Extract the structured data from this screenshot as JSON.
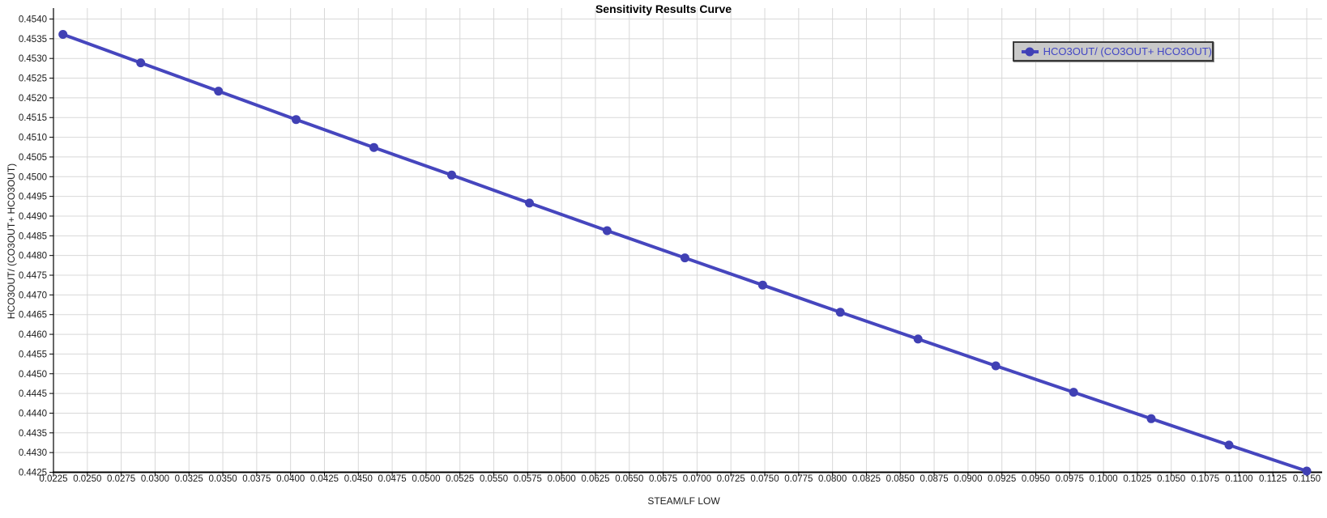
{
  "window": {
    "title": "Sensitivity Results Curve"
  },
  "chart_data": {
    "type": "line",
    "title": "Sensitivity Results Curve",
    "xlabel": "STEAM/LF LOW",
    "ylabel": "HCO3OUT/ (CO3OUT+ HCO3OUT)",
    "legend_position": "top-right",
    "grid": true,
    "marker": "circle",
    "series": [
      {
        "name": "HCO3OUT/ (CO3OUT+ HCO3OUT)",
        "x": [
          0.0232,
          0.02894,
          0.03468,
          0.04041,
          0.04615,
          0.05189,
          0.05763,
          0.06336,
          0.0691,
          0.07484,
          0.08057,
          0.08631,
          0.09205,
          0.09779,
          0.10352,
          0.10926,
          0.115
        ],
        "y": [
          0.45361,
          0.45289,
          0.45217,
          0.45145,
          0.45074,
          0.45004,
          0.44933,
          0.44863,
          0.44794,
          0.44725,
          0.44656,
          0.44588,
          0.4452,
          0.44453,
          0.44386,
          0.44319,
          0.44253
        ]
      }
    ],
    "xlim": [
      0.0225,
      0.1165
    ],
    "ylim": [
      0.4425,
      0.4543
    ],
    "x_tick_labels": [
      "0.0225",
      "0.0250",
      "0.0275",
      "0.0300",
      "0.0325",
      "0.0350",
      "0.0375",
      "0.0400",
      "0.0425",
      "0.0450",
      "0.0475",
      "0.0500",
      "0.0525",
      "0.0550",
      "0.0575",
      "0.0600",
      "0.0625",
      "0.0650",
      "0.0675",
      "0.0700",
      "0.0725",
      "0.0750",
      "0.0775",
      "0.0800",
      "0.0825",
      "0.0850",
      "0.0875",
      "0.0900",
      "0.0925",
      "0.0950",
      "0.0975",
      "0.1000",
      "0.1025",
      "0.1050",
      "0.1075",
      "0.1100",
      "0.1125",
      "0.1150"
    ],
    "y_tick_labels": [
      "0.4425",
      "0.4430",
      "0.4435",
      "0.4440",
      "0.4445",
      "0.4450",
      "0.4455",
      "0.4460",
      "0.4465",
      "0.4470",
      "0.4475",
      "0.4480",
      "0.4485",
      "0.4490",
      "0.4495",
      "0.4500",
      "0.4505",
      "0.4510",
      "0.4515",
      "0.4520",
      "0.4525",
      "0.4530",
      "0.4535",
      "0.4540"
    ]
  },
  "legend": {
    "entry": "HCO3OUT/ (CO3OUT+ HCO3OUT)"
  },
  "colors": {
    "series": "#4646be",
    "marker": "#4040b4",
    "legend_text": "#4145c4",
    "legend_bg": "#c9c9c9",
    "legend_border": "#3a3a3a",
    "grid": "#d8d8d8",
    "axis": "#000000",
    "tick_text": "#1a1a1a"
  }
}
